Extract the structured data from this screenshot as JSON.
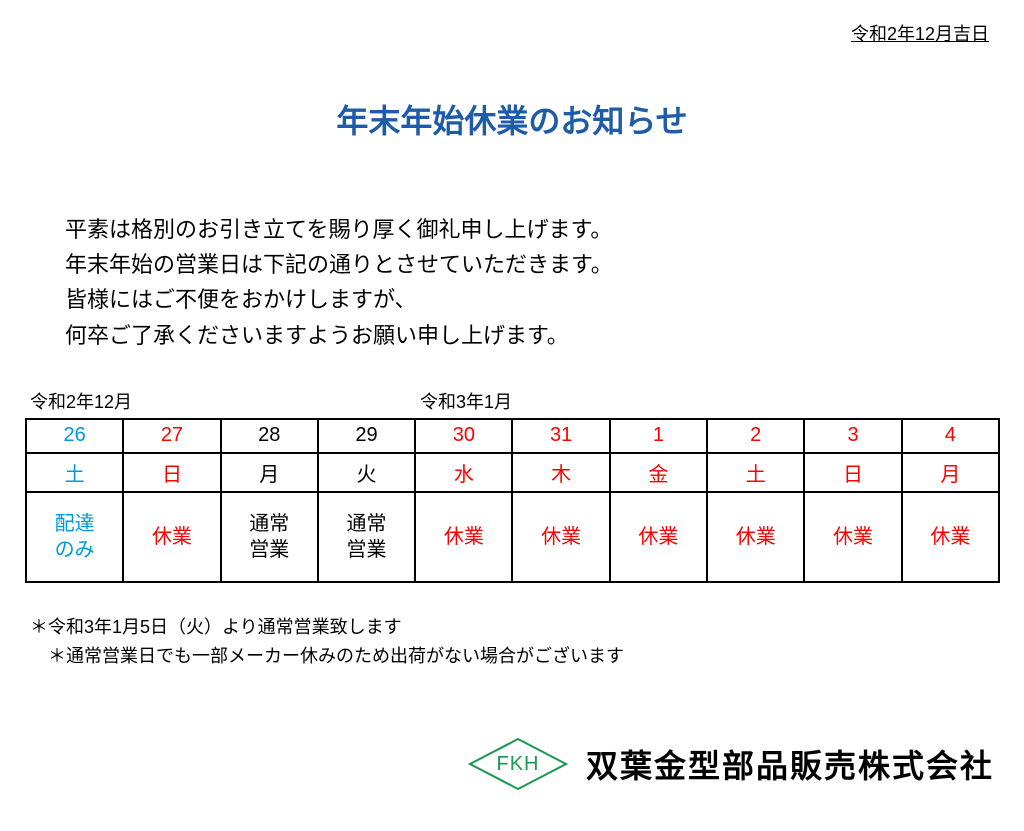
{
  "header": {
    "date": "令和2年12月吉日"
  },
  "title": "年末年始休業のお知らせ",
  "body": {
    "line1": "平素は格別のお引き立てを賜り厚く御礼申し上げます。",
    "line2": "年末年始の営業日は下記の通りとさせていただきます。",
    "line3": "皆様にはご不便をおかけしますが、",
    "line4": "何卒ご了承くださいますようお願い申し上げます。"
  },
  "months": {
    "left": "令和2年12月",
    "right": "令和3年1月"
  },
  "table": {
    "colors": {
      "blue": "#0099dd",
      "red": "#ff0000",
      "black": "#000000",
      "border": "#000000"
    },
    "columns": [
      {
        "date": "26",
        "day": "土",
        "status": "配達\nのみ",
        "date_color": "blue",
        "day_color": "blue",
        "status_color": "blue"
      },
      {
        "date": "27",
        "day": "日",
        "status": "休業",
        "date_color": "red",
        "day_color": "red",
        "status_color": "red"
      },
      {
        "date": "28",
        "day": "月",
        "status": "通常\n営業",
        "date_color": "black",
        "day_color": "black",
        "status_color": "black"
      },
      {
        "date": "29",
        "day": "火",
        "status": "通常\n営業",
        "date_color": "black",
        "day_color": "black",
        "status_color": "black"
      },
      {
        "date": "30",
        "day": "水",
        "status": "休業",
        "date_color": "red",
        "day_color": "red",
        "status_color": "red"
      },
      {
        "date": "31",
        "day": "木",
        "status": "休業",
        "date_color": "red",
        "day_color": "red",
        "status_color": "red"
      },
      {
        "date": "1",
        "day": "金",
        "status": "休業",
        "date_color": "red",
        "day_color": "red",
        "status_color": "red"
      },
      {
        "date": "2",
        "day": "土",
        "status": "休業",
        "date_color": "red",
        "day_color": "red",
        "status_color": "red"
      },
      {
        "date": "3",
        "day": "日",
        "status": "休業",
        "date_color": "red",
        "day_color": "red",
        "status_color": "red"
      },
      {
        "date": "4",
        "day": "月",
        "status": "休業",
        "date_color": "red",
        "day_color": "red",
        "status_color": "red"
      }
    ]
  },
  "notes": {
    "line1": "＊令和3年1月5日（火）より通常営業致します",
    "line2": "　＊通常営業日でも一部メーカー休みのため出荷がない場合がございます"
  },
  "footer": {
    "logo_text": "FKH",
    "logo_color": "#1a9950",
    "company": "双葉金型部品販売株式会社"
  }
}
